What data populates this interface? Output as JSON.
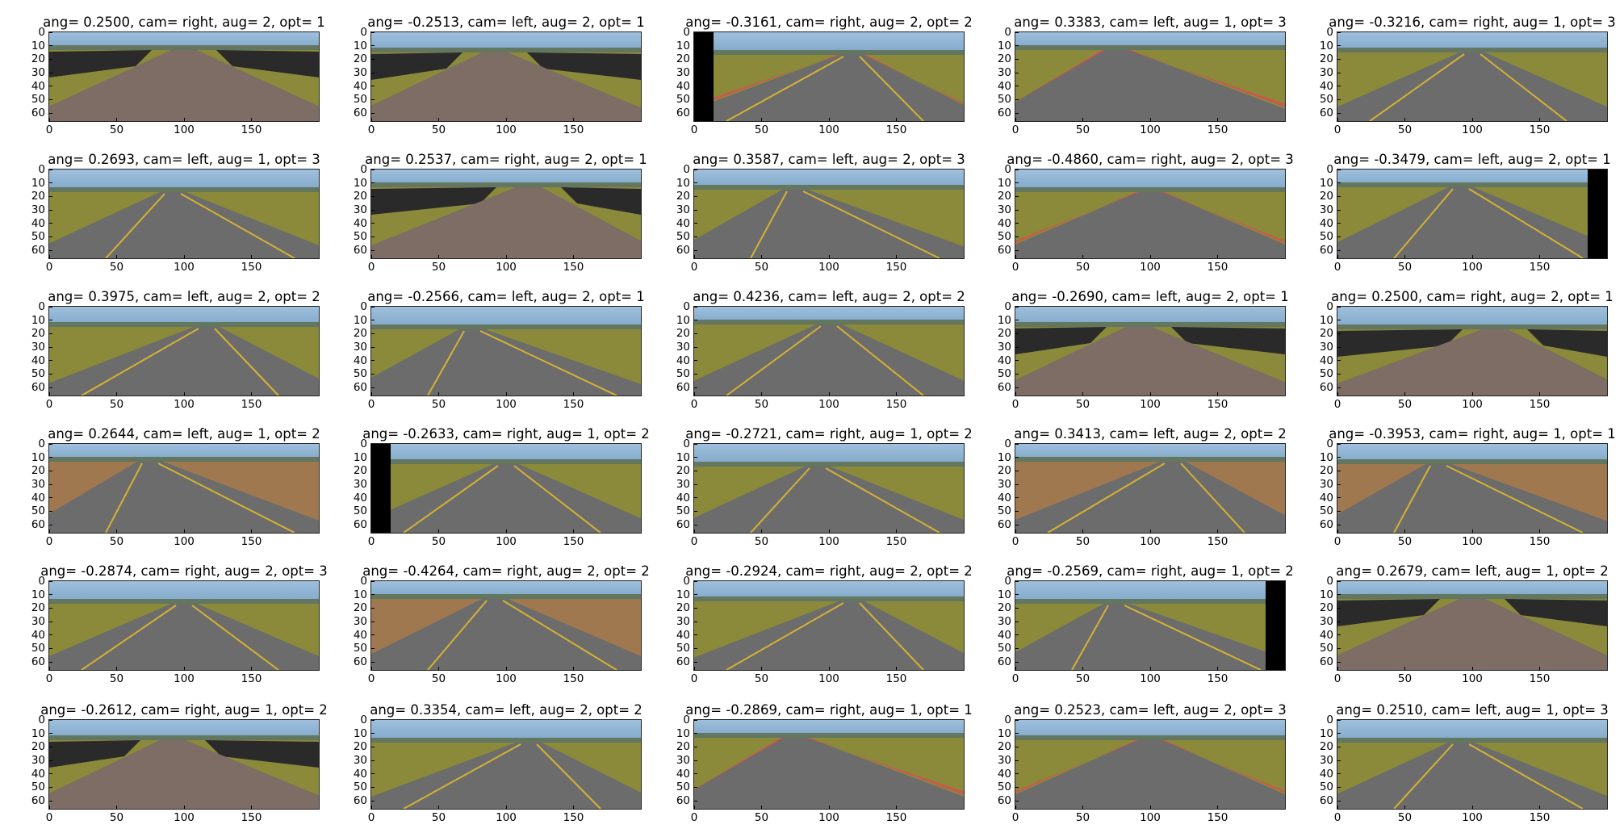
{
  "figure": {
    "axis": {
      "xticks": [
        "0",
        "50",
        "100",
        "150"
      ],
      "yticks": [
        "0",
        "10",
        "20",
        "30",
        "40",
        "50",
        "60"
      ],
      "xlim": [
        0,
        200
      ],
      "ylim": [
        0,
        66
      ]
    },
    "colors": {
      "sky": "#7fa6c8",
      "road_asphalt": "#6c6c6c",
      "road_brick": "#7e6d64",
      "grass": "#8a8a3a",
      "dirt": "#a07850",
      "curb_red": "#d45050",
      "lane_yellow": "#d4b233"
    },
    "panels": [
      {
        "title": "ang= 0.2500, cam= right, aug= 2, opt= 1",
        "scene": "brick"
      },
      {
        "title": "ang= -0.2513, cam= left, aug= 2, opt= 1",
        "scene": "brick"
      },
      {
        "title": "ang= -0.3161, cam= right, aug= 2, opt= 2",
        "scene": "curve"
      },
      {
        "title": "ang= 0.3383, cam= left, aug= 1, opt= 3",
        "scene": "curb"
      },
      {
        "title": "ang= -0.3216, cam= right, aug= 1, opt= 3",
        "scene": "asphalt"
      },
      {
        "title": "ang= 0.2693, cam= left, aug= 1, opt= 3",
        "scene": "asphalt"
      },
      {
        "title": "ang= 0.2537, cam= right, aug= 2, opt= 1",
        "scene": "brick"
      },
      {
        "title": "ang= 0.3587, cam= left, aug= 2, opt= 3",
        "scene": "asphalt"
      },
      {
        "title": "ang= -0.4860, cam= right, aug= 2, opt= 3",
        "scene": "curb"
      },
      {
        "title": "ang= -0.3479, cam= left, aug= 2, opt= 1",
        "scene": "asphalt"
      },
      {
        "title": "ang= 0.3975, cam= left, aug= 2, opt= 2",
        "scene": "asphalt"
      },
      {
        "title": "ang= -0.2566, cam= left, aug= 2, opt= 1",
        "scene": "asphalt"
      },
      {
        "title": "ang= 0.4236, cam= left, aug= 2, opt= 2",
        "scene": "asphalt"
      },
      {
        "title": "ang= -0.2690, cam= left, aug= 2, opt= 1",
        "scene": "brick"
      },
      {
        "title": "ang= 0.2500, cam= right, aug= 2, opt= 1",
        "scene": "brick"
      },
      {
        "title": "ang= 0.2644, cam= left, aug= 1, opt= 2",
        "scene": "dirt"
      },
      {
        "title": "ang= -0.2633, cam= right, aug= 1, opt= 2",
        "scene": "asphalt"
      },
      {
        "title": "ang= -0.2721, cam= right, aug= 1, opt= 2",
        "scene": "asphalt"
      },
      {
        "title": "ang= 0.3413, cam= left, aug= 2, opt= 2",
        "scene": "dirt"
      },
      {
        "title": "ang= -0.3953, cam= right, aug= 1, opt= 1",
        "scene": "dirt"
      },
      {
        "title": "ang= -0.2874, cam= right, aug= 2, opt= 3",
        "scene": "asphalt"
      },
      {
        "title": "ang= -0.4264, cam= right, aug= 2, opt= 2",
        "scene": "dirt"
      },
      {
        "title": "ang= -0.2924, cam= right, aug= 2, opt= 2",
        "scene": "asphalt"
      },
      {
        "title": "ang= -0.2569, cam= right, aug= 1, opt= 2",
        "scene": "asphalt"
      },
      {
        "title": "ang= 0.2679, cam= left, aug= 1, opt= 2",
        "scene": "brick"
      },
      {
        "title": "ang= -0.2612, cam= right, aug= 1, opt= 2",
        "scene": "brick"
      },
      {
        "title": "ang= 0.3354, cam= left, aug= 2, opt= 2",
        "scene": "asphalt"
      },
      {
        "title": "ang= -0.2869, cam= right, aug= 1, opt= 1",
        "scene": "curb"
      },
      {
        "title": "ang= 0.2523, cam= left, aug= 2, opt= 3",
        "scene": "curb"
      },
      {
        "title": "ang= 0.2510, cam= left, aug= 1, opt= 3",
        "scene": "asphalt"
      }
    ]
  }
}
